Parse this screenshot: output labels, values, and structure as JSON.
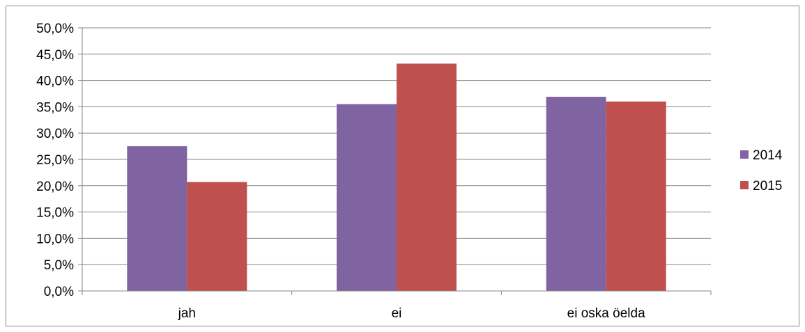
{
  "chart_data": {
    "type": "bar",
    "categories": [
      "jah",
      "ei",
      "ei oska öelda"
    ],
    "series": [
      {
        "name": "2014",
        "values": [
          27.5,
          35.5,
          36.9
        ],
        "color": "#8064A2"
      },
      {
        "name": "2015",
        "values": [
          20.7,
          43.2,
          36.0
        ],
        "color": "#C0504D"
      }
    ],
    "yticks": [
      "0,0%",
      "5,0%",
      "10,0%",
      "15,0%",
      "20,0%",
      "25,0%",
      "30,0%",
      "35,0%",
      "40,0%",
      "45,0%",
      "50,0%"
    ],
    "ylim": [
      0,
      50
    ],
    "grid": true,
    "legend_position": "right"
  }
}
